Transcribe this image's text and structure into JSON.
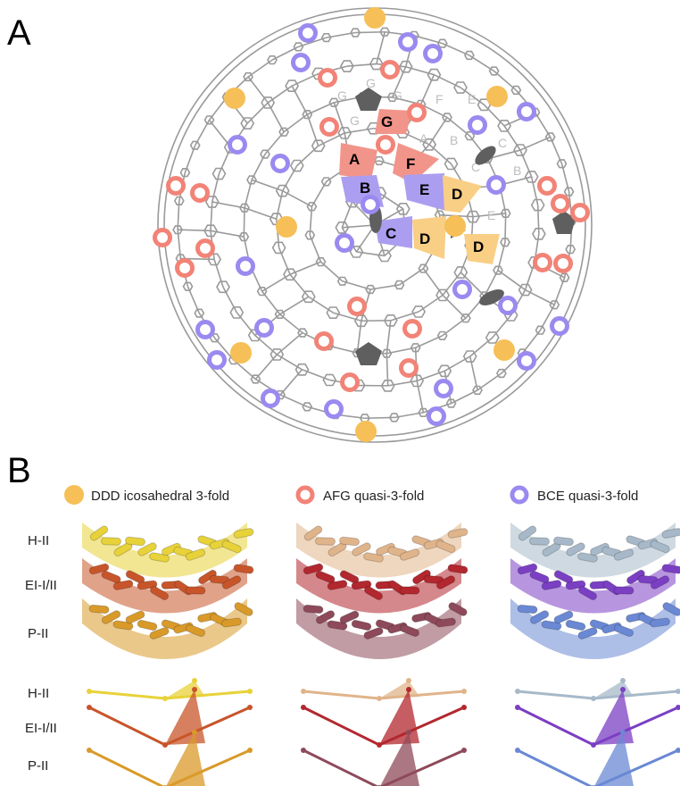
{
  "panel_a": {
    "letter": "A"
  },
  "panel_b": {
    "letter": "B"
  },
  "legend": [
    {
      "label": "DDD icosahedral 3-fold",
      "symbol": "filled-circle",
      "color": "#f6bf57"
    },
    {
      "label": "AFG quasi-3-fold",
      "symbol": "ring",
      "color": "#f28377"
    },
    {
      "label": "BCE quasi-3-fold",
      "symbol": "ring",
      "color": "#9a8af0"
    }
  ],
  "row_labels_structures": [
    "H-II",
    "EI-I/II",
    "P-II"
  ],
  "row_labels_schematic": [
    "H-II",
    "EI-I/II",
    "P-II"
  ],
  "subunits": [
    {
      "label": "A",
      "color": "#f1958a"
    },
    {
      "label": "F",
      "color": "#f1958a"
    },
    {
      "label": "G",
      "color": "#f1958a"
    },
    {
      "label": "B",
      "color": "#ab9ef0"
    },
    {
      "label": "E",
      "color": "#ab9ef0"
    },
    {
      "label": "C",
      "color": "#ab9ef0"
    },
    {
      "label": "D",
      "color": "#f9cf86"
    },
    {
      "label": "D",
      "color": "#f9cf86"
    },
    {
      "label": "D",
      "color": "#f9cf86"
    }
  ],
  "ghost_labels": [
    "G",
    "G",
    "G",
    "G",
    "F",
    "E",
    "A",
    "B",
    "C",
    "C",
    "B",
    "E"
  ],
  "colors": {
    "mesh": "#9a9a9a",
    "symmetry_marker": "#5f5f5f",
    "ddd": "#f6bf57",
    "afg": "#f28377",
    "bce": "#9a8af0",
    "ddd_structure": [
      "#e8d23a",
      "#c8552a",
      "#d99a2a"
    ],
    "afg_structure": [
      "#e0b48a",
      "#b3272e",
      "#8e4a5a"
    ],
    "bce_structure": [
      "#a7b9c9",
      "#7b3fc4",
      "#6a88d4"
    ]
  }
}
